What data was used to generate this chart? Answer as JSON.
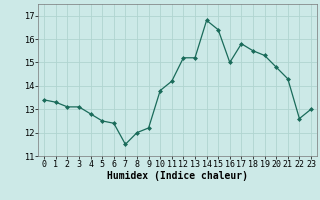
{
  "x": [
    0,
    1,
    2,
    3,
    4,
    5,
    6,
    7,
    8,
    9,
    10,
    11,
    12,
    13,
    14,
    15,
    16,
    17,
    18,
    19,
    20,
    21,
    22,
    23
  ],
  "y": [
    13.4,
    13.3,
    13.1,
    13.1,
    12.8,
    12.5,
    12.4,
    11.5,
    12.0,
    12.2,
    13.8,
    14.2,
    15.2,
    15.2,
    16.8,
    16.4,
    15.0,
    15.8,
    15.5,
    15.3,
    14.8,
    14.3,
    12.6,
    13.0
  ],
  "xlabel": "Humidex (Indice chaleur)",
  "ylim": [
    11,
    17.5
  ],
  "xlim": [
    -0.5,
    23.5
  ],
  "yticks": [
    11,
    12,
    13,
    14,
    15,
    16,
    17
  ],
  "xticks": [
    0,
    1,
    2,
    3,
    4,
    5,
    6,
    7,
    8,
    9,
    10,
    11,
    12,
    13,
    14,
    15,
    16,
    17,
    18,
    19,
    20,
    21,
    22,
    23
  ],
  "line_color": "#1a6b5a",
  "marker_color": "#1a6b5a",
  "bg_color": "#cce9e7",
  "grid_color": "#b0d4d0",
  "tick_label_fontsize": 6,
  "xlabel_fontsize": 7
}
